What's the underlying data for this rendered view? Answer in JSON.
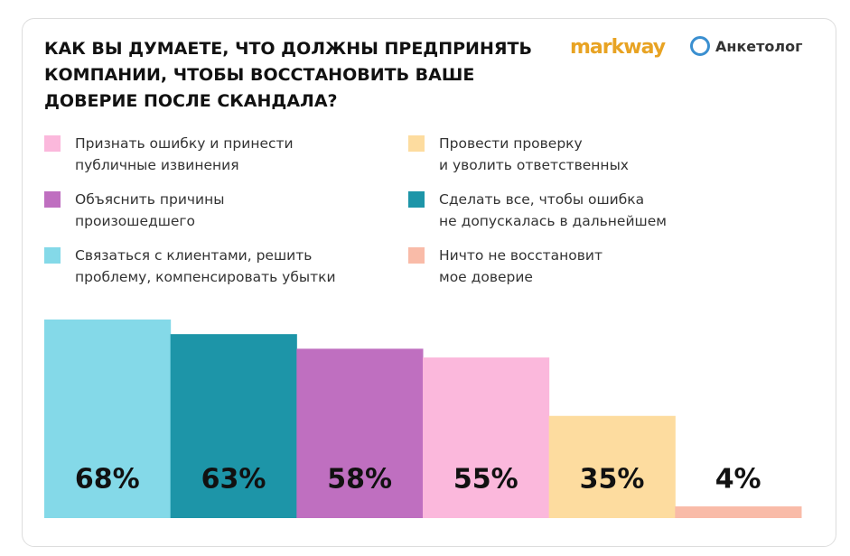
{
  "chart_data": {
    "type": "bar",
    "title": "КАК ВЫ ДУМАЕТЕ, ЧТО ДОЛЖНЫ ПРЕДПРИНЯТЬ\nКОМПАНИИ, ЧТОБЫ ВОССТАНОВИТЬ ВАШЕ\nДОВЕРИЕ ПОСЛЕ СКАНДАЛА?",
    "logos": [
      "markway",
      "Анкетолог"
    ],
    "categories": [
      "Связаться с клиентами, решить\nпроблему, компенсировать убытки",
      "Сделать все, чтобы ошибка\nне допускалась в дальнейшем",
      "Объяснить причины\nпроизошедшего",
      "Признать ошибку и принести\nпубличные извинения",
      "Провести проверку\nи уволить ответственных",
      "Ничто не восстановит\nмое доверие"
    ],
    "values": [
      68,
      63,
      58,
      55,
      35,
      4
    ],
    "value_labels": [
      "68%",
      "63%",
      "58%",
      "55%",
      "35%",
      "4%"
    ],
    "colors": [
      "#84d9e8",
      "#1d95a8",
      "#bf6fc0",
      "#fbb8dc",
      "#fddc9f",
      "#f9bba8"
    ]
  }
}
